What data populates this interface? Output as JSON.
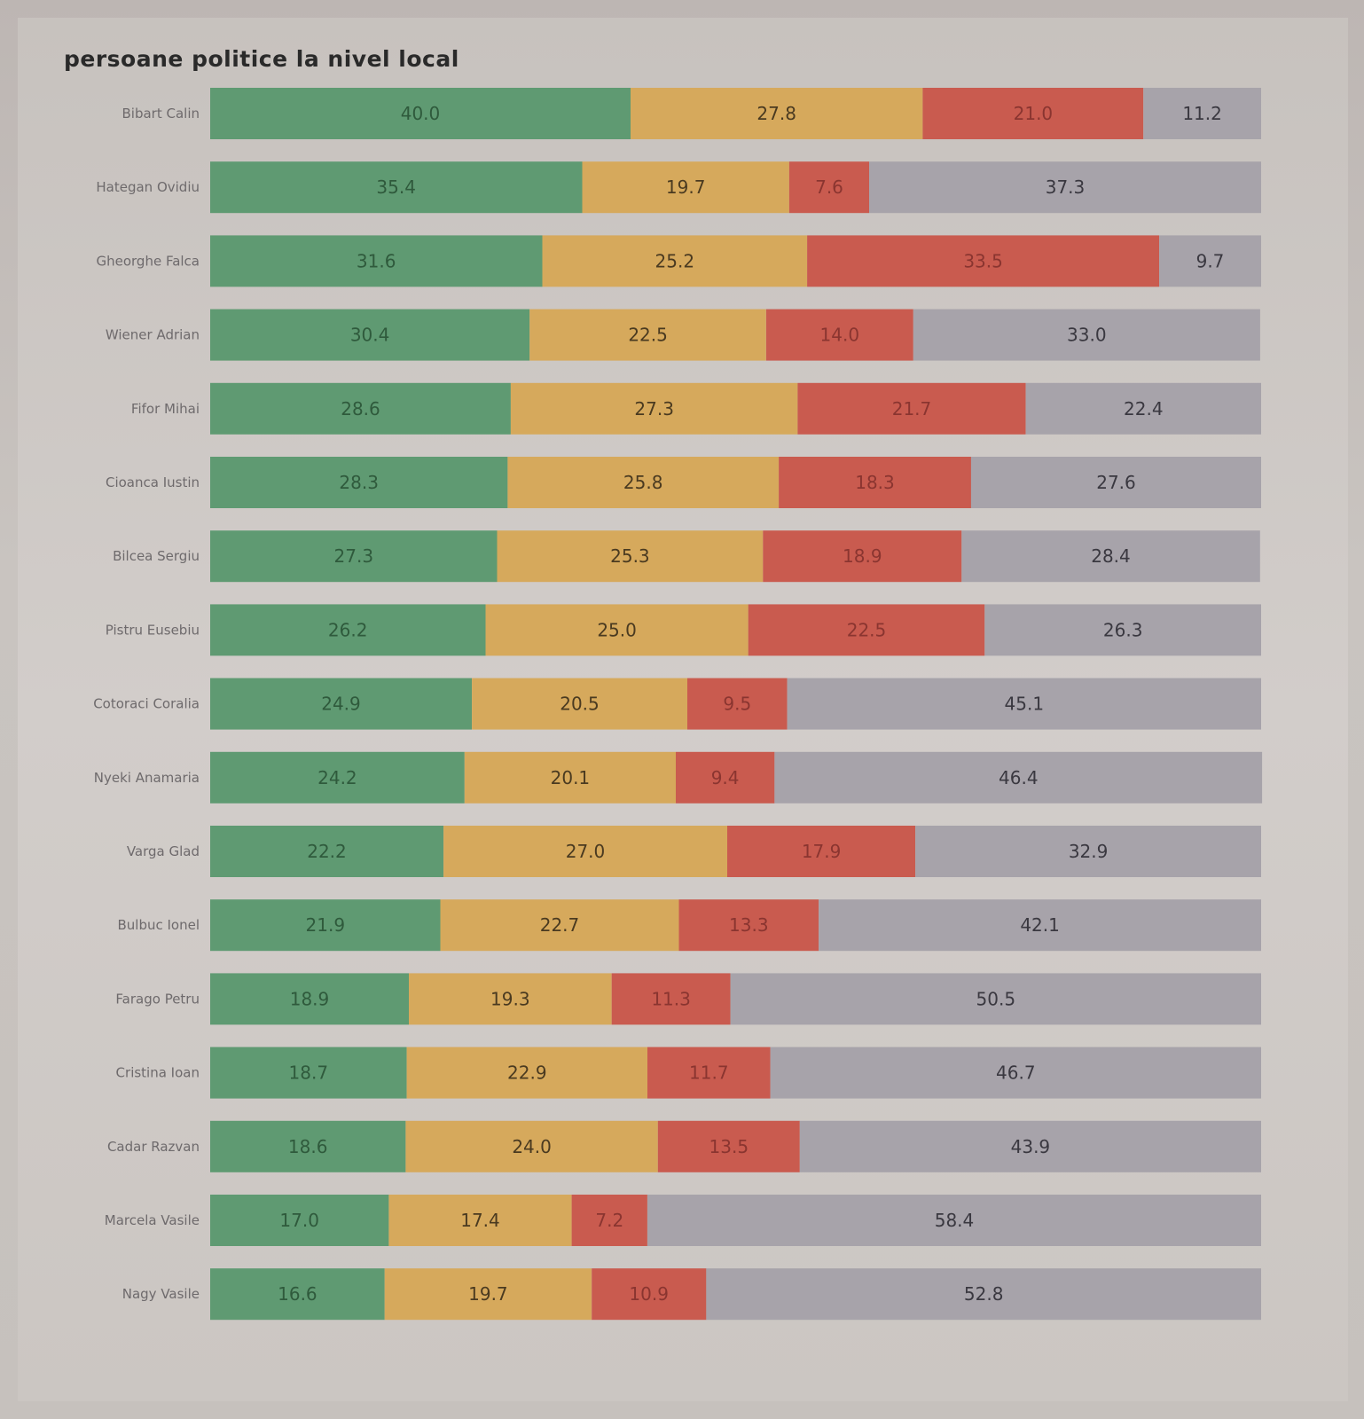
{
  "chart_data": {
    "type": "bar",
    "orientation": "horizontal",
    "stacked": true,
    "title": "persoane politice la nivel local",
    "xlabel": "",
    "ylabel": "",
    "xlim": [
      0,
      100
    ],
    "grid": false,
    "legend": "none",
    "categories": [
      "Bibart Calin",
      "Hategan Ovidiu",
      "Gheorghe Falca",
      "Wiener Adrian",
      "Fifor Mihai",
      "Cioanca Iustin",
      "Bilcea Sergiu",
      "Pistru Eusebiu",
      "Cotoraci Coralia",
      "Nyeki Anamaria",
      "Varga Glad",
      "Bulbuc Ionel",
      "Farago Petru",
      "Cristina Ioan",
      "Cadar Razvan",
      "Marcela Vasile",
      "Nagy Vasile"
    ],
    "series": [
      {
        "name": "green",
        "color": "#5f9a72",
        "text_color": "#2f5a3c",
        "values": [
          40.0,
          35.4,
          31.6,
          30.4,
          28.6,
          28.3,
          27.3,
          26.2,
          24.9,
          24.2,
          22.2,
          21.9,
          18.9,
          18.7,
          18.6,
          17.0,
          16.6
        ]
      },
      {
        "name": "yellow",
        "color": "#d6a95c",
        "text_color": "#4a3a20",
        "values": [
          27.8,
          19.7,
          25.2,
          22.5,
          27.3,
          25.8,
          25.3,
          25.0,
          20.5,
          20.1,
          27.0,
          22.7,
          19.3,
          22.9,
          24.0,
          17.4,
          19.7
        ]
      },
      {
        "name": "red",
        "color": "#c95b4f",
        "text_color": "#8a3530",
        "values": [
          21.0,
          7.6,
          33.5,
          14.0,
          21.7,
          18.3,
          18.9,
          22.5,
          9.5,
          9.4,
          17.9,
          13.3,
          11.3,
          11.7,
          13.5,
          7.2,
          10.9
        ]
      },
      {
        "name": "gray",
        "color": "#a7a3aa",
        "text_color": "#3a3840",
        "values": [
          11.2,
          37.3,
          9.7,
          33.0,
          22.4,
          27.6,
          28.4,
          26.3,
          45.1,
          46.4,
          32.9,
          42.1,
          50.5,
          46.7,
          43.9,
          58.4,
          52.8
        ]
      }
    ]
  }
}
